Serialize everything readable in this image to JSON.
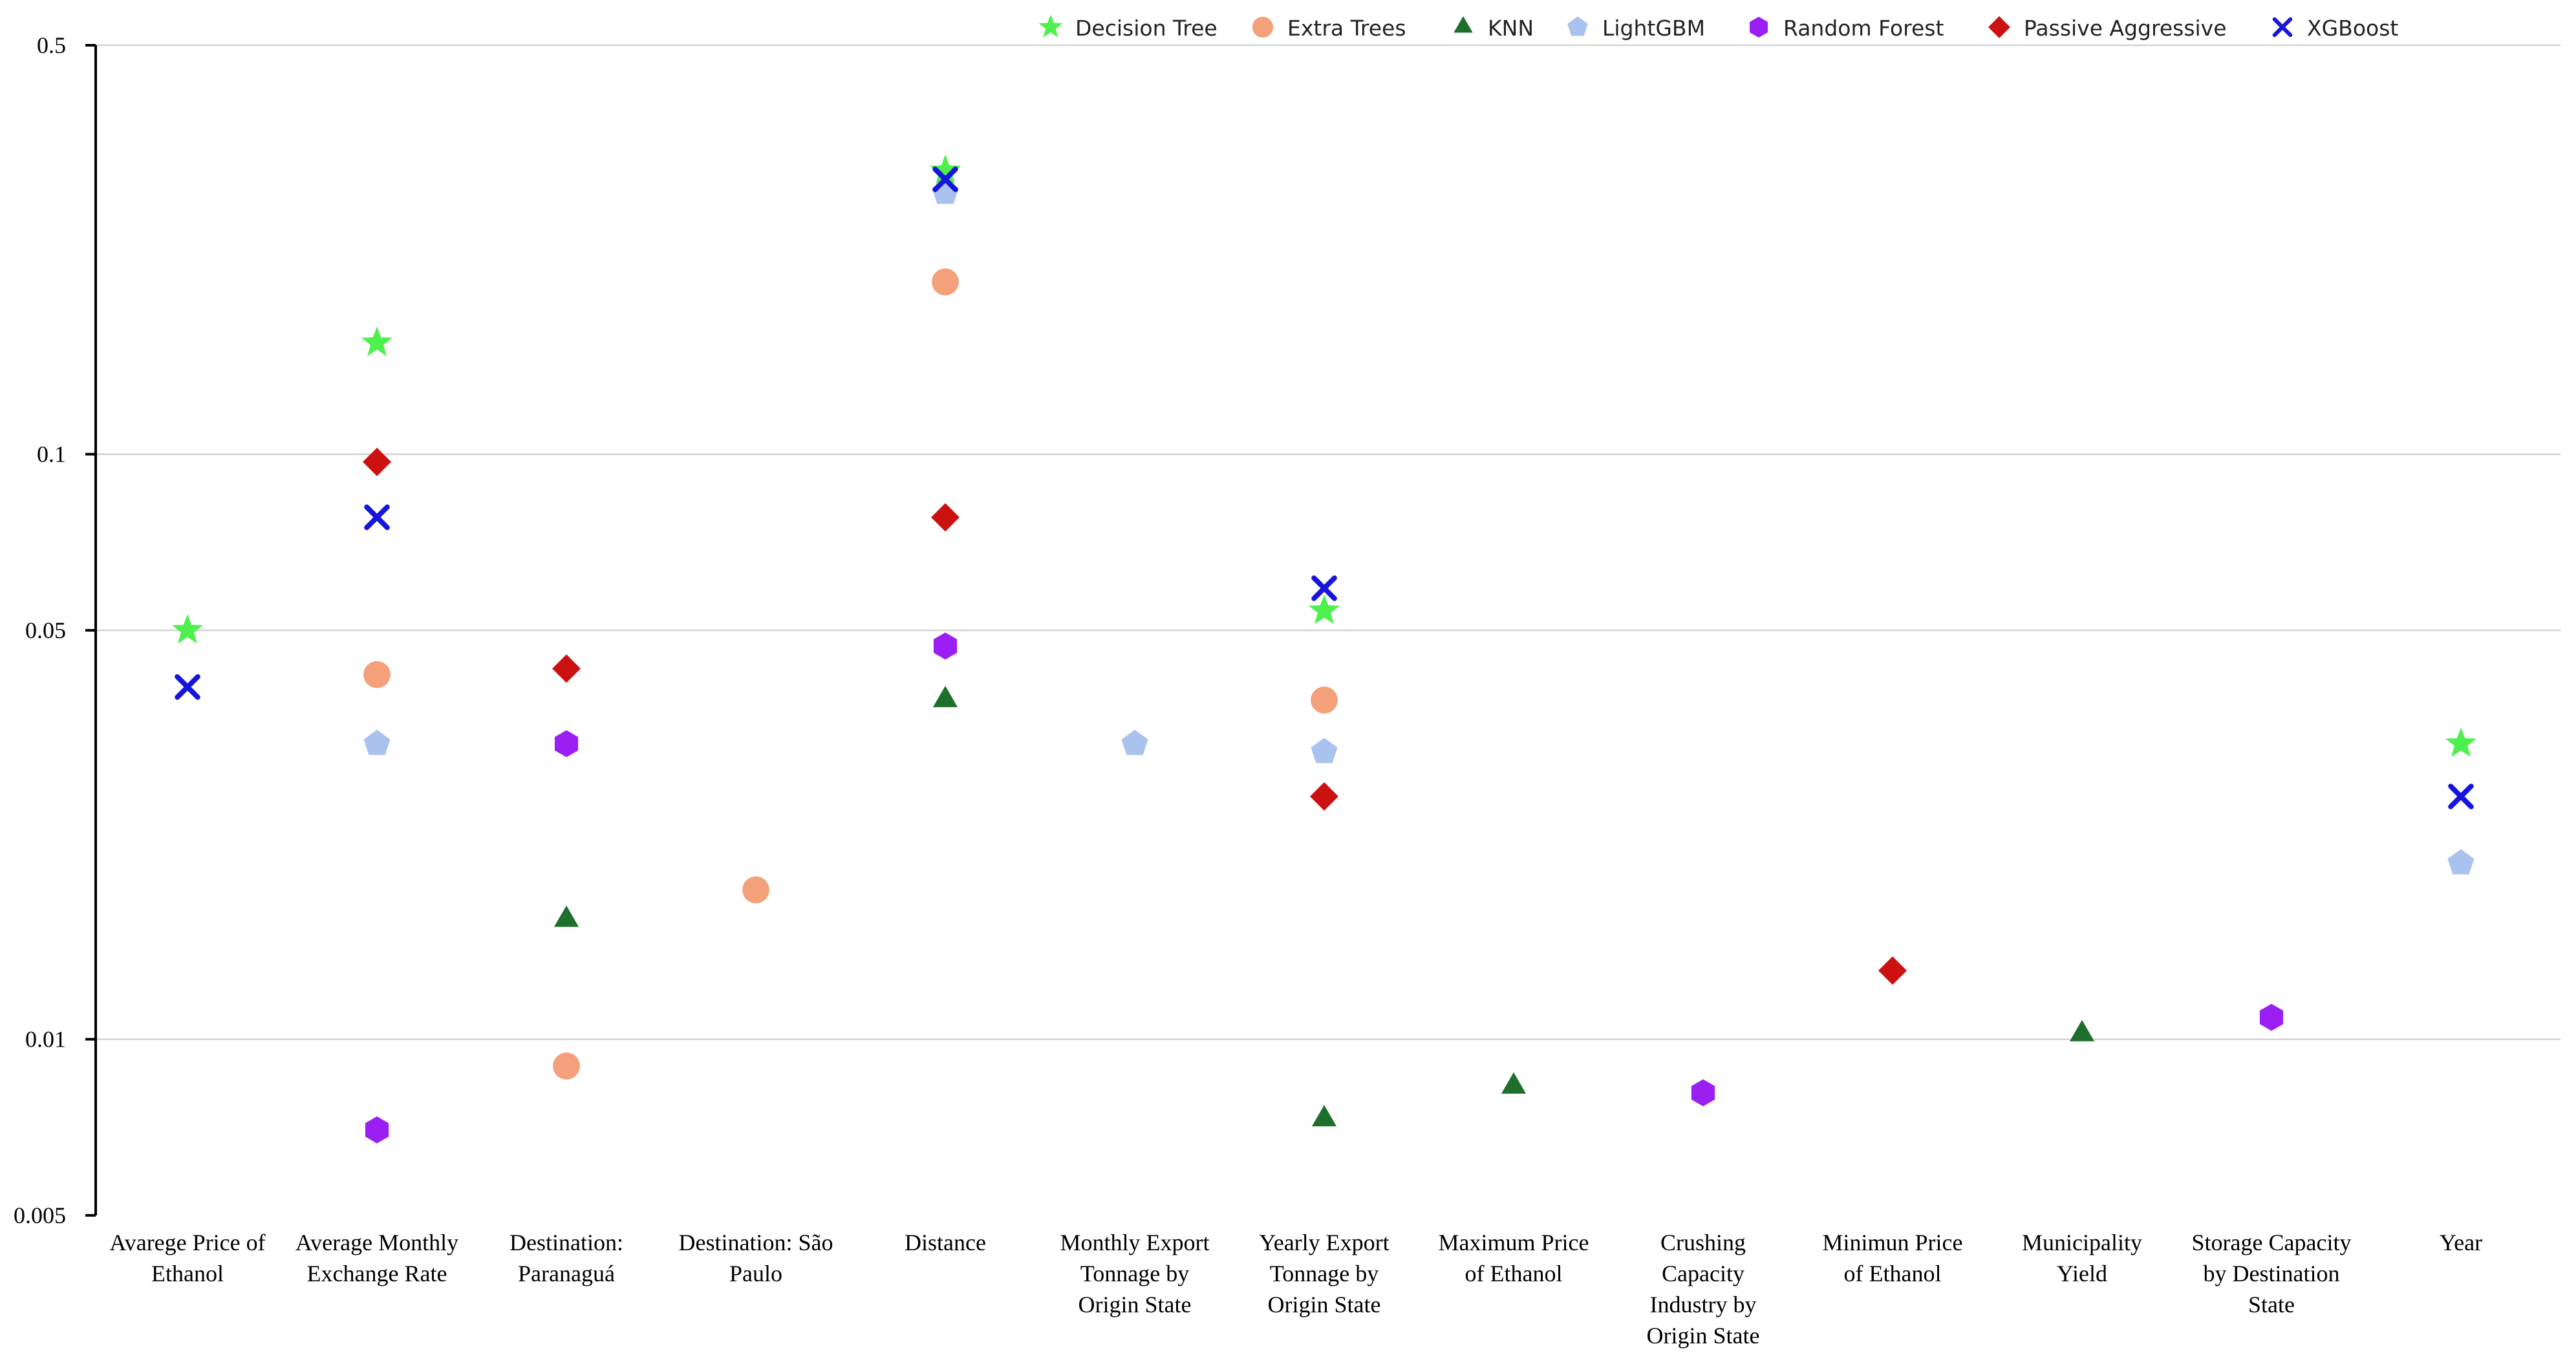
{
  "chart_data": {
    "type": "scatter",
    "y_scale": "log",
    "ylim": [
      0.005,
      0.5
    ],
    "y_ticks": [
      {
        "value": 0.005,
        "label": "0.005"
      },
      {
        "value": 0.01,
        "label": "0.01"
      },
      {
        "value": 0.05,
        "label": "0.05"
      },
      {
        "value": 0.1,
        "label": "0.1"
      },
      {
        "value": 0.5,
        "label": "0.5"
      }
    ],
    "grid": true,
    "legend_position": "top",
    "categories": [
      [
        "Avarege Price of",
        "Ethanol"
      ],
      [
        "Average Monthly",
        "Exchange Rate"
      ],
      [
        "Destination:",
        "Paranaguá"
      ],
      [
        "Destination: São",
        "Paulo"
      ],
      [
        "Distance"
      ],
      [
        "Monthly Export",
        "Tonnage by",
        "Origin State"
      ],
      [
        "Yearly Export",
        "Tonnage by",
        "Origin State"
      ],
      [
        "Maximum Price",
        "of Ethanol"
      ],
      [
        "Crushing",
        "Capacity",
        "Industry by",
        "Origin State"
      ],
      [
        "Minimun Price",
        "of Ethanol"
      ],
      [
        "Municipality",
        "Yield"
      ],
      [
        "Storage Capacity",
        "by Destination",
        "State"
      ],
      [
        "Year"
      ]
    ],
    "series": [
      {
        "name": "Decision Tree",
        "marker": "star",
        "color": "#4df04d",
        "points": [
          [
            0,
            0.05
          ],
          [
            1,
            0.155
          ],
          [
            4,
            0.305
          ],
          [
            6,
            0.054
          ],
          [
            12,
            0.032
          ]
        ]
      },
      {
        "name": "Extra Trees",
        "marker": "circle",
        "color": "#f4a07a",
        "points": [
          [
            1,
            0.042
          ],
          [
            2,
            0.009
          ],
          [
            3,
            0.018
          ],
          [
            4,
            0.197
          ],
          [
            6,
            0.038
          ]
        ]
      },
      {
        "name": "KNN",
        "marker": "triangle",
        "color": "#1e6e2c",
        "points": [
          [
            2,
            0.016
          ],
          [
            4,
            0.038
          ],
          [
            6,
            0.0073
          ],
          [
            7,
            0.0083
          ],
          [
            10,
            0.0102
          ]
        ]
      },
      {
        "name": "LightGBM",
        "marker": "pentagon",
        "color": "#a9c3ee",
        "points": [
          [
            1,
            0.032
          ],
          [
            4,
            0.28
          ],
          [
            5,
            0.032
          ],
          [
            6,
            0.031
          ],
          [
            12,
            0.02
          ]
        ]
      },
      {
        "name": "Random Forest",
        "marker": "hexagon",
        "color": "#9b1ff2",
        "points": [
          [
            1,
            0.007
          ],
          [
            2,
            0.032
          ],
          [
            4,
            0.047
          ],
          [
            8,
            0.0081
          ],
          [
            11,
            0.0109
          ]
        ]
      },
      {
        "name": "Passive Aggressive",
        "marker": "diamond",
        "color": "#cc1111",
        "points": [
          [
            1,
            0.097
          ],
          [
            2,
            0.043
          ],
          [
            4,
            0.078
          ],
          [
            6,
            0.026
          ],
          [
            9,
            0.0131
          ]
        ]
      },
      {
        "name": "XGBoost",
        "marker": "x",
        "color": "#1515dd",
        "points": [
          [
            0,
            0.04
          ],
          [
            1,
            0.078
          ],
          [
            4,
            0.295
          ],
          [
            6,
            0.059
          ],
          [
            12,
            0.026
          ]
        ]
      }
    ]
  }
}
